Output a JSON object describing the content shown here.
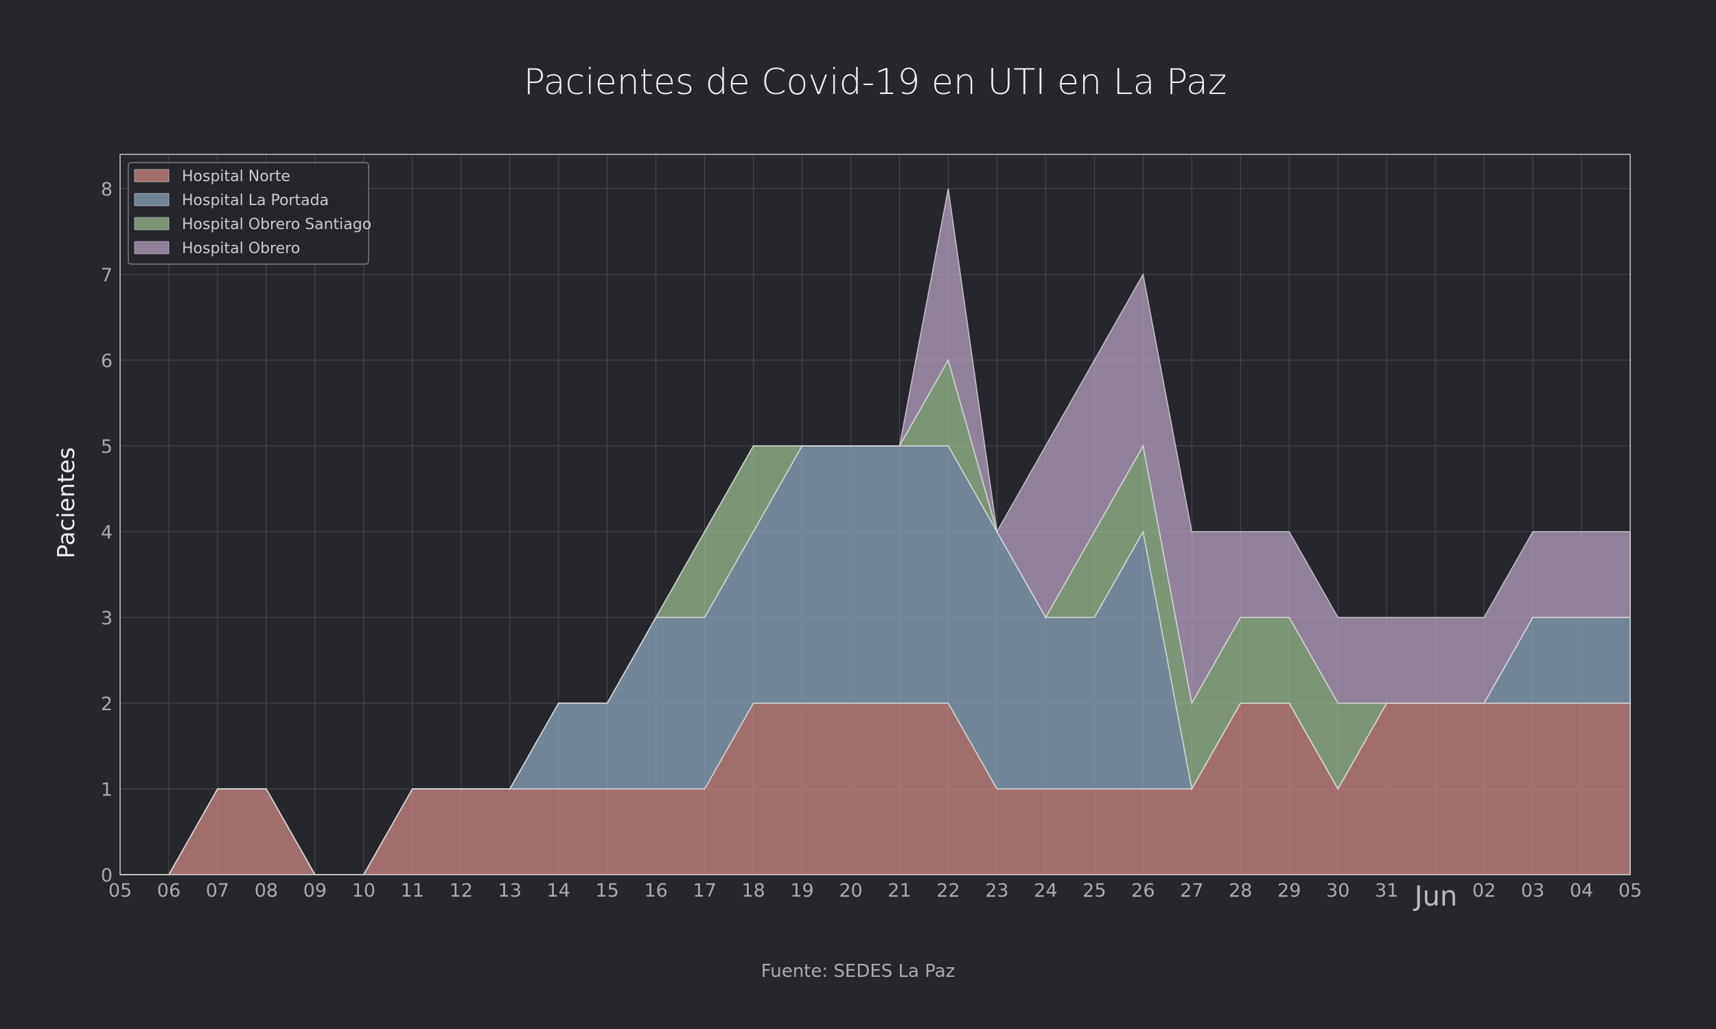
{
  "chart_data": {
    "type": "area",
    "stacked": true,
    "title": "Pacientes de Covid-19 en UTI en La Paz",
    "ylabel": "Pacientes",
    "xlabel": "",
    "source": "Fuente: SEDES La Paz",
    "month_label": "Jun",
    "x": [
      "05",
      "06",
      "07",
      "08",
      "09",
      "10",
      "11",
      "12",
      "13",
      "14",
      "15",
      "16",
      "17",
      "18",
      "19",
      "20",
      "21",
      "22",
      "23",
      "24",
      "25",
      "26",
      "27",
      "28",
      "29",
      "30",
      "31",
      "01",
      "02",
      "03",
      "04",
      "05"
    ],
    "x_tick_labels": [
      "05",
      "06",
      "07",
      "08",
      "09",
      "10",
      "11",
      "12",
      "13",
      "14",
      "15",
      "16",
      "17",
      "18",
      "19",
      "20",
      "21",
      "22",
      "23",
      "24",
      "25",
      "26",
      "27",
      "28",
      "29",
      "30",
      "31",
      "",
      "02",
      "03",
      "04",
      "05"
    ],
    "ylim": [
      0,
      8.4
    ],
    "yticks": [
      0,
      1,
      2,
      3,
      4,
      5,
      6,
      7,
      8
    ],
    "grid": true,
    "legend_position": "top-left",
    "series": [
      {
        "name": "Hospital Norte",
        "color": "#d18b88",
        "values": [
          0,
          0,
          1,
          1,
          0,
          0,
          1,
          1,
          1,
          1,
          1,
          1,
          1,
          2,
          2,
          2,
          2,
          2,
          1,
          1,
          1,
          1,
          1,
          2,
          2,
          1,
          2,
          2,
          2,
          2,
          2,
          2
        ]
      },
      {
        "name": "Hospital La Portada",
        "color": "#8fabc0",
        "values": [
          0,
          0,
          0,
          0,
          0,
          0,
          0,
          0,
          0,
          1,
          1,
          2,
          2,
          2,
          3,
          3,
          3,
          3,
          3,
          2,
          2,
          3,
          0,
          0,
          0,
          0,
          0,
          0,
          0,
          1,
          1,
          1
        ]
      },
      {
        "name": "Hospital Obrero Santiago",
        "color": "#9dbf92",
        "values": [
          0,
          0,
          0,
          0,
          0,
          0,
          0,
          0,
          0,
          0,
          0,
          0,
          1,
          1,
          0,
          0,
          0,
          1,
          0,
          0,
          1,
          1,
          1,
          1,
          1,
          1,
          0,
          0,
          0,
          0,
          0,
          0
        ]
      },
      {
        "name": "Hospital Obrero",
        "color": "#bba3c3",
        "values": [
          0,
          0,
          0,
          0,
          0,
          0,
          0,
          0,
          0,
          0,
          0,
          0,
          0,
          0,
          0,
          0,
          0,
          2,
          0,
          2,
          2,
          2,
          2,
          1,
          1,
          1,
          1,
          1,
          1,
          1,
          1,
          1
        ]
      }
    ]
  }
}
